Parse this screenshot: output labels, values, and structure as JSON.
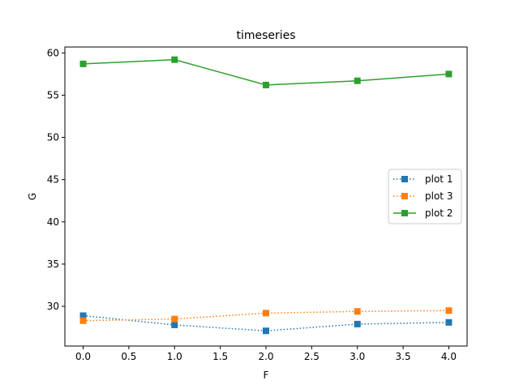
{
  "chart_data": {
    "type": "line",
    "title": "timeseries",
    "xlabel": "F",
    "ylabel": "G",
    "xlim": [
      -0.2,
      4.2
    ],
    "ylim": [
      25.3,
      60.7
    ],
    "xticks": [
      0.0,
      0.5,
      1.0,
      1.5,
      2.0,
      2.5,
      3.0,
      3.5,
      4.0
    ],
    "xtick_labels": [
      "0.0",
      "0.5",
      "1.0",
      "1.5",
      "2.0",
      "2.5",
      "3.0",
      "3.5",
      "4.0"
    ],
    "yticks": [
      30,
      35,
      40,
      45,
      50,
      55,
      60
    ],
    "ytick_labels": [
      "30",
      "35",
      "40",
      "45",
      "50",
      "55",
      "60"
    ],
    "grid": false,
    "legend_position": "center-right",
    "x": [
      0,
      1,
      2,
      3,
      4
    ],
    "series": [
      {
        "name": "plot 1",
        "values": [
          28.9,
          27.8,
          27.1,
          27.9,
          28.1
        ],
        "color": "#1f77b4",
        "linestyle": "dotted",
        "marker": "square"
      },
      {
        "name": "plot 3",
        "values": [
          28.3,
          28.5,
          29.2,
          29.4,
          29.5
        ],
        "color": "#ff7f0e",
        "linestyle": "dotted",
        "marker": "square"
      },
      {
        "name": "plot 2",
        "values": [
          58.7,
          59.2,
          56.2,
          56.7,
          57.5
        ],
        "color": "#2ca02c",
        "linestyle": "solid",
        "marker": "square"
      }
    ]
  }
}
